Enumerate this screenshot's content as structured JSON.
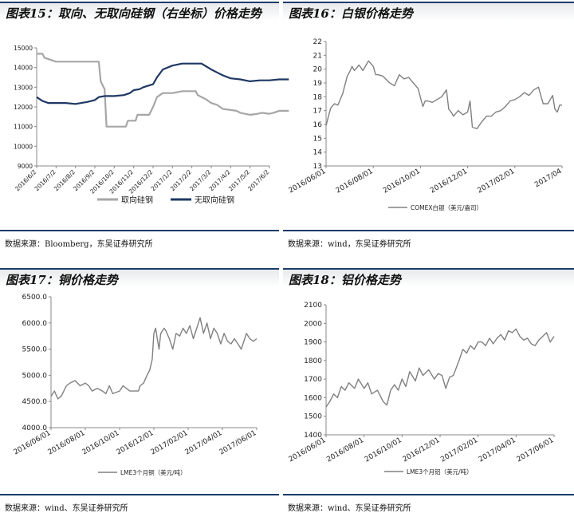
{
  "panels": {
    "p15": {
      "title": "图表15：取向、无取向硅钢（右坐标）价格走势",
      "source": "数据来源：Bloomberg，东吴证券研究所"
    },
    "p16": {
      "title": "图表16：白银价格走势",
      "source": "数据来源：wind，东吴证券研究所"
    },
    "p17": {
      "title": "图表17：铜价格走势",
      "source": "数据来源：wind、东吴证券研究所"
    },
    "p18": {
      "title": "图表18：铝价格走势",
      "source": "数据来源：wind、东吴证券研究所"
    }
  },
  "chart_data": [
    {
      "id": "p15",
      "type": "line",
      "title": "取向、无取向硅钢（右坐标）价格走势",
      "categories": [
        "2016/6/2",
        "2016/7/2",
        "2016/8/2",
        "2016/9/2",
        "2016/10/2",
        "2016/11/2",
        "2016/12/2",
        "2017/1/2",
        "2017/2/2",
        "2017/3/2",
        "2017/4/2",
        "2017/5/2",
        "2017/6/2"
      ],
      "ylim": [
        9000,
        15000
      ],
      "yticks": [
        "9000",
        "10000",
        "11000",
        "12000",
        "13000",
        "14000",
        "15000"
      ],
      "series": [
        {
          "name": "取向硅钢",
          "color": "#a6a6a6",
          "x": [
            0,
            0.3,
            0.4,
            1,
            2,
            3,
            3.2,
            3.3,
            3.5,
            3.6,
            4,
            4.6,
            4.7,
            5.1,
            5.2,
            5.8,
            6,
            6.2,
            6.5,
            7,
            7.5,
            8.2,
            8.3,
            8.7,
            9,
            9.3,
            9.6,
            10.3,
            10.5,
            11,
            11.4,
            11.6,
            12,
            12.2,
            12.5,
            13
          ],
          "values": [
            14700,
            14700,
            14500,
            14300,
            14300,
            14300,
            14300,
            13300,
            12900,
            11000,
            11000,
            11000,
            11300,
            11300,
            11600,
            11600,
            12000,
            12500,
            12700,
            12700,
            12800,
            12800,
            12600,
            12400,
            12200,
            12100,
            11900,
            11800,
            11700,
            11600,
            11650,
            11700,
            11650,
            11700,
            11800,
            11800
          ]
        },
        {
          "name": "无取向硅钢",
          "color": "#1f3864",
          "x": [
            0,
            0.3,
            0.6,
            1,
            1.5,
            2,
            2.3,
            2.6,
            3,
            3.2,
            3.5,
            4,
            4.5,
            4.8,
            5,
            5.3,
            5.5,
            6,
            6.2,
            6.5,
            7,
            7.5,
            8,
            8.2,
            8.5,
            9,
            9.3,
            9.6,
            10,
            10.5,
            11,
            11.5,
            12,
            12.5,
            13
          ],
          "values": [
            12500,
            12300,
            12200,
            12200,
            12200,
            12150,
            12200,
            12250,
            12350,
            12500,
            12550,
            12550,
            12600,
            12700,
            12850,
            12900,
            13000,
            13150,
            13500,
            13900,
            14100,
            14200,
            14200,
            14200,
            14200,
            13900,
            13750,
            13600,
            13450,
            13400,
            13300,
            13350,
            13350,
            13400,
            13400
          ]
        }
      ]
    },
    {
      "id": "p16",
      "type": "line",
      "title": "白银价格走势",
      "categories": [
        "2016/06/01",
        "2016/08/01",
        "2016/10/01",
        "2016/12/01",
        "2017/02/01",
        "2017/04"
      ],
      "ylim": [
        13,
        22
      ],
      "yticks": [
        "13",
        "14",
        "15",
        "16",
        "17",
        "18",
        "19",
        "20",
        "21",
        "22"
      ],
      "series": [
        {
          "name": "COMEX白银（美元/盎司）",
          "color": "#808080",
          "x": [
            0,
            0.05,
            0.1,
            0.18,
            0.25,
            0.35,
            0.45,
            0.5,
            0.55,
            0.6,
            0.7,
            0.78,
            0.85,
            0.9,
            1.0,
            1.05,
            1.1,
            1.2,
            1.35,
            1.45,
            1.55,
            1.65,
            1.75,
            1.85,
            1.95,
            2.05,
            2.1,
            2.15,
            2.25,
            2.35,
            2.45,
            2.55,
            2.6,
            2.65,
            2.7,
            2.8,
            2.9,
            3.0,
            3.05,
            3.1,
            3.2,
            3.3,
            3.4,
            3.5,
            3.6,
            3.7,
            3.8,
            3.9,
            4.0,
            4.1,
            4.2,
            4.3,
            4.4,
            4.5,
            4.6,
            4.7,
            4.8,
            4.85,
            4.9,
            4.95,
            5.0
          ],
          "values": [
            15.9,
            16.6,
            17.2,
            17.5,
            17.4,
            18.2,
            19.5,
            19.8,
            20.2,
            19.9,
            20.3,
            19.9,
            20.3,
            20.6,
            20.2,
            19.6,
            19.6,
            19.5,
            19.0,
            18.8,
            19.6,
            19.3,
            19.4,
            19.0,
            18.6,
            17.3,
            17.7,
            17.7,
            17.6,
            17.8,
            18.0,
            18.5,
            17.1,
            16.9,
            16.6,
            17.0,
            16.7,
            16.9,
            17.7,
            15.8,
            15.7,
            16.2,
            16.6,
            16.6,
            16.9,
            17.0,
            17.3,
            17.7,
            17.8,
            18.0,
            18.3,
            18.1,
            18.5,
            18.7,
            17.5,
            17.5,
            18.1,
            17.1,
            16.9,
            17.4,
            17.4
          ]
        }
      ]
    },
    {
      "id": "p17",
      "type": "line",
      "title": "铜价格走势",
      "categories": [
        "2016/06/01",
        "2016/08/01",
        "2016/10/01",
        "2016/12/01",
        "2017/02/01",
        "2017/04/01",
        "2017/06/01"
      ],
      "ylim": [
        4000,
        6500
      ],
      "yticks": [
        "4000.0",
        "4500.0",
        "5000.0",
        "5500.0",
        "6000.0",
        "6500.0"
      ],
      "series": [
        {
          "name": "LME3个月铜（美元/吨）",
          "color": "#808080",
          "x": [
            0,
            0.1,
            0.2,
            0.3,
            0.45,
            0.55,
            0.7,
            0.85,
            1.0,
            1.1,
            1.2,
            1.35,
            1.5,
            1.6,
            1.7,
            1.8,
            2.0,
            2.1,
            2.2,
            2.3,
            2.4,
            2.55,
            2.6,
            2.7,
            2.8,
            2.88,
            2.95,
            3.0,
            3.05,
            3.1,
            3.15,
            3.2,
            3.3,
            3.35,
            3.45,
            3.55,
            3.65,
            3.75,
            3.85,
            3.95,
            4.05,
            4.15,
            4.25,
            4.35,
            4.45,
            4.55,
            4.65,
            4.75,
            4.85,
            4.95,
            5.05,
            5.15,
            5.25,
            5.35,
            5.45,
            5.55,
            5.6,
            5.7,
            5.8,
            5.9,
            6.0
          ],
          "values": [
            4600,
            4700,
            4550,
            4600,
            4800,
            4850,
            4900,
            4800,
            4850,
            4800,
            4700,
            4750,
            4700,
            4650,
            4800,
            4650,
            4700,
            4800,
            4750,
            4700,
            4700,
            4700,
            4800,
            4850,
            5000,
            5100,
            5300,
            5800,
            5900,
            5700,
            5500,
            5800,
            5900,
            5850,
            5700,
            5500,
            5800,
            5750,
            5900,
            5800,
            5950,
            5700,
            5900,
            6100,
            5800,
            6000,
            5700,
            5900,
            5800,
            5600,
            5800,
            5650,
            5600,
            5700,
            5600,
            5500,
            5600,
            5800,
            5700,
            5650,
            5700
          ]
        }
      ]
    },
    {
      "id": "p18",
      "type": "line",
      "title": "铝价格走势",
      "categories": [
        "2016/06/01",
        "2016/08/01",
        "2016/10/01",
        "2016/12/01",
        "2017/02/01",
        "2017/04/01",
        "2017/06/01"
      ],
      "ylim": [
        1400,
        2100
      ],
      "yticks": [
        "1400",
        "1500",
        "1600",
        "1700",
        "1800",
        "1900",
        "2000",
        "2100"
      ],
      "series": [
        {
          "name": "LME3个月铝（美元/吨）",
          "color": "#808080",
          "x": [
            0,
            0.1,
            0.2,
            0.3,
            0.4,
            0.5,
            0.6,
            0.75,
            0.85,
            1.0,
            1.1,
            1.2,
            1.35,
            1.5,
            1.6,
            1.7,
            1.8,
            1.9,
            2.0,
            2.1,
            2.2,
            2.35,
            2.45,
            2.55,
            2.7,
            2.85,
            2.95,
            3.05,
            3.15,
            3.25,
            3.35,
            3.5,
            3.6,
            3.7,
            3.8,
            3.9,
            4.0,
            4.1,
            4.2,
            4.3,
            4.4,
            4.5,
            4.6,
            4.7,
            4.8,
            4.9,
            5.0,
            5.1,
            5.2,
            5.3,
            5.4,
            5.5,
            5.6,
            5.7,
            5.8,
            5.9,
            6.0
          ],
          "values": [
            1550,
            1580,
            1620,
            1600,
            1660,
            1640,
            1680,
            1650,
            1700,
            1650,
            1680,
            1620,
            1640,
            1580,
            1560,
            1640,
            1670,
            1640,
            1700,
            1660,
            1740,
            1690,
            1760,
            1720,
            1750,
            1700,
            1730,
            1720,
            1650,
            1710,
            1720,
            1800,
            1860,
            1840,
            1880,
            1860,
            1900,
            1900,
            1880,
            1920,
            1890,
            1920,
            1940,
            1910,
            1960,
            1950,
            1970,
            1930,
            1910,
            1920,
            1890,
            1880,
            1910,
            1930,
            1950,
            1900,
            1930
          ]
        }
      ]
    }
  ]
}
